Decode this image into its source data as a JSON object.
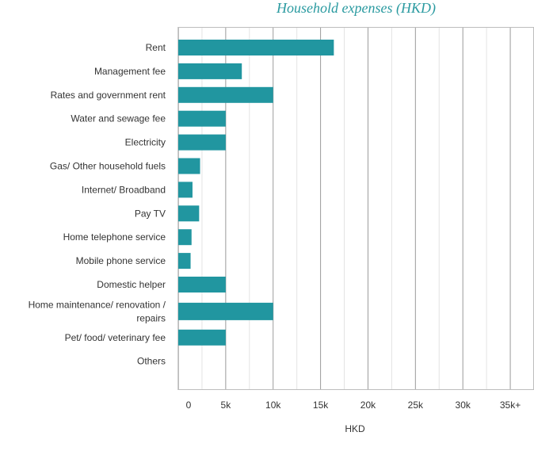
{
  "chart_data": {
    "type": "bar",
    "orientation": "horizontal",
    "title": "Household expenses (HKD)",
    "xlabel": "HKD",
    "ylabel": "",
    "categories": [
      [
        "Rent"
      ],
      [
        "Management fee"
      ],
      [
        "Rates and government rent"
      ],
      [
        "Water and sewage fee"
      ],
      [
        "Electricity"
      ],
      [
        "Gas/ Other household fuels"
      ],
      [
        "Internet/ Broadband"
      ],
      [
        "Pay TV"
      ],
      [
        "Home telephone service"
      ],
      [
        "Mobile phone service"
      ],
      [
        "Domestic helper"
      ],
      [
        "Home maintenance/ renovation /",
        "repairs"
      ],
      [
        "Pet/ food/ veterinary fee"
      ],
      [
        "Others"
      ]
    ],
    "values": [
      16400,
      6700,
      10000,
      5000,
      5000,
      2300,
      1500,
      2200,
      1400,
      1300,
      5000,
      10000,
      5000,
      0
    ],
    "xlim": [
      0,
      37500
    ],
    "xticks": [
      0,
      5000,
      10000,
      15000,
      20000,
      25000,
      30000,
      35000
    ],
    "xtick_labels": [
      "0",
      "5k",
      "10k",
      "15k",
      "20k",
      "25k",
      "30k",
      "35k+"
    ],
    "grid": true,
    "bar_color": "#2196a0",
    "title_color": "#2a9aa0"
  }
}
